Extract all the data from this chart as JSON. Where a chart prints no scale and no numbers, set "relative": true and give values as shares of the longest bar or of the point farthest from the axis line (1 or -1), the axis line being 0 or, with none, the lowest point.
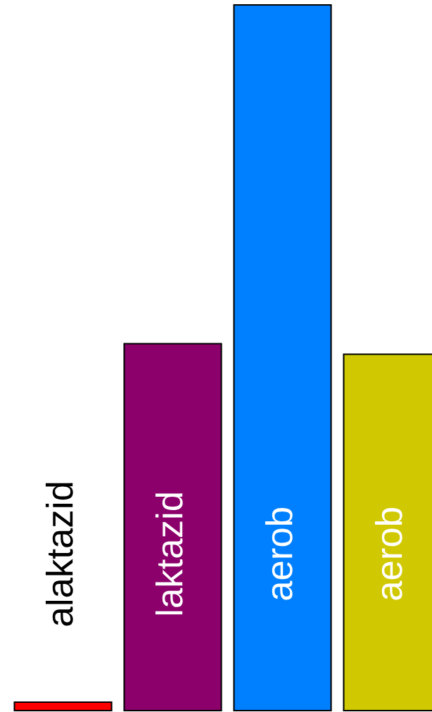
{
  "chart_data": {
    "type": "bar",
    "relative": true,
    "categories": [
      "alaktazid",
      "laktazid",
      "aerob",
      "aerob"
    ],
    "values": [
      0.012,
      0.52,
      1,
      0.505
    ],
    "colors": [
      "#ff0000",
      "#8b006b",
      "#0080ff",
      "#d0c800"
    ]
  }
}
